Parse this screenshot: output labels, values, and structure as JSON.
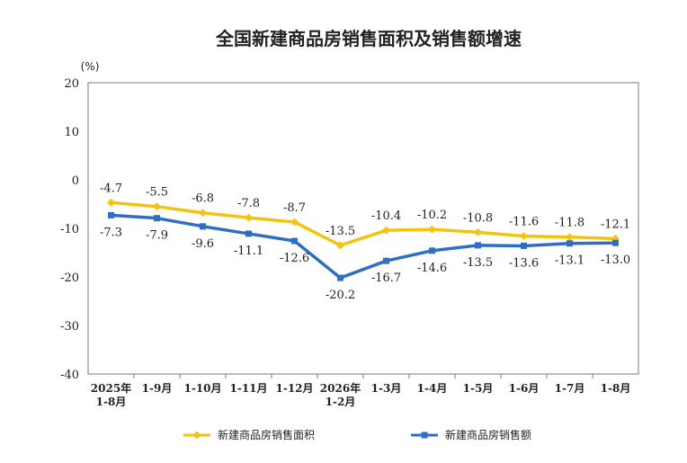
{
  "chart_data": {
    "type": "line",
    "title": "全国新建商品房销售面积及销售额增速",
    "unit": "(%)",
    "xlabel": "",
    "ylabel": "",
    "ylim": [
      -40,
      20
    ],
    "yticks": [
      20,
      10,
      0,
      -10,
      -20,
      -30,
      -40
    ],
    "grid": false,
    "legend_position": "bottom",
    "categories": [
      [
        "2025年",
        "1-8月"
      ],
      [
        "1-9月"
      ],
      [
        "1-10月"
      ],
      [
        "1-11月"
      ],
      [
        "1-12月"
      ],
      [
        "2026年",
        "1-2月"
      ],
      [
        "1-3月"
      ],
      [
        "1-4月"
      ],
      [
        "1-5月"
      ],
      [
        "1-6月"
      ],
      [
        "1-7月"
      ],
      [
        "1-8月"
      ]
    ],
    "series": [
      {
        "name": "新建商品房销售面积",
        "color": "#f5c211",
        "marker": "diamond",
        "label_position": "above",
        "values": [
          -4.7,
          -5.5,
          -6.8,
          -7.8,
          -8.7,
          -13.5,
          -10.4,
          -10.2,
          -10.8,
          -11.6,
          -11.8,
          -12.1
        ]
      },
      {
        "name": "新建商品房销售额",
        "color": "#2e6fc4",
        "marker": "square",
        "label_position": "below",
        "values": [
          -7.3,
          -7.9,
          -9.6,
          -11.1,
          -12.6,
          -20.2,
          -16.7,
          -14.6,
          -13.5,
          -13.6,
          -13.1,
          -13.0
        ]
      }
    ]
  }
}
